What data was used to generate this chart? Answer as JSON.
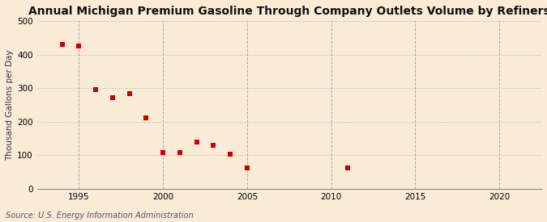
{
  "title": "Annual Michigan Premium Gasoline Through Company Outlets Volume by Refiners",
  "ylabel": "Thousand Gallons per Day",
  "source": "Source: U.S. Energy Information Administration",
  "background_color": "#faebd7",
  "x_data": [
    1994,
    1995,
    1996,
    1997,
    1998,
    1999,
    2000,
    2001,
    2002,
    2003,
    2004,
    2005,
    2011
  ],
  "y_data": [
    430,
    425,
    295,
    272,
    283,
    212,
    108,
    108,
    140,
    130,
    104,
    63,
    62
  ],
  "marker_color": "#cc0000",
  "marker": "s",
  "marker_size": 4,
  "xlim": [
    1992.5,
    2022.5
  ],
  "ylim": [
    0,
    500
  ],
  "yticks": [
    0,
    100,
    200,
    300,
    400,
    500
  ],
  "xticks": [
    1995,
    2000,
    2005,
    2010,
    2015,
    2020
  ],
  "title_fontsize": 10,
  "label_fontsize": 7.5,
  "tick_fontsize": 7.5,
  "source_fontsize": 7
}
